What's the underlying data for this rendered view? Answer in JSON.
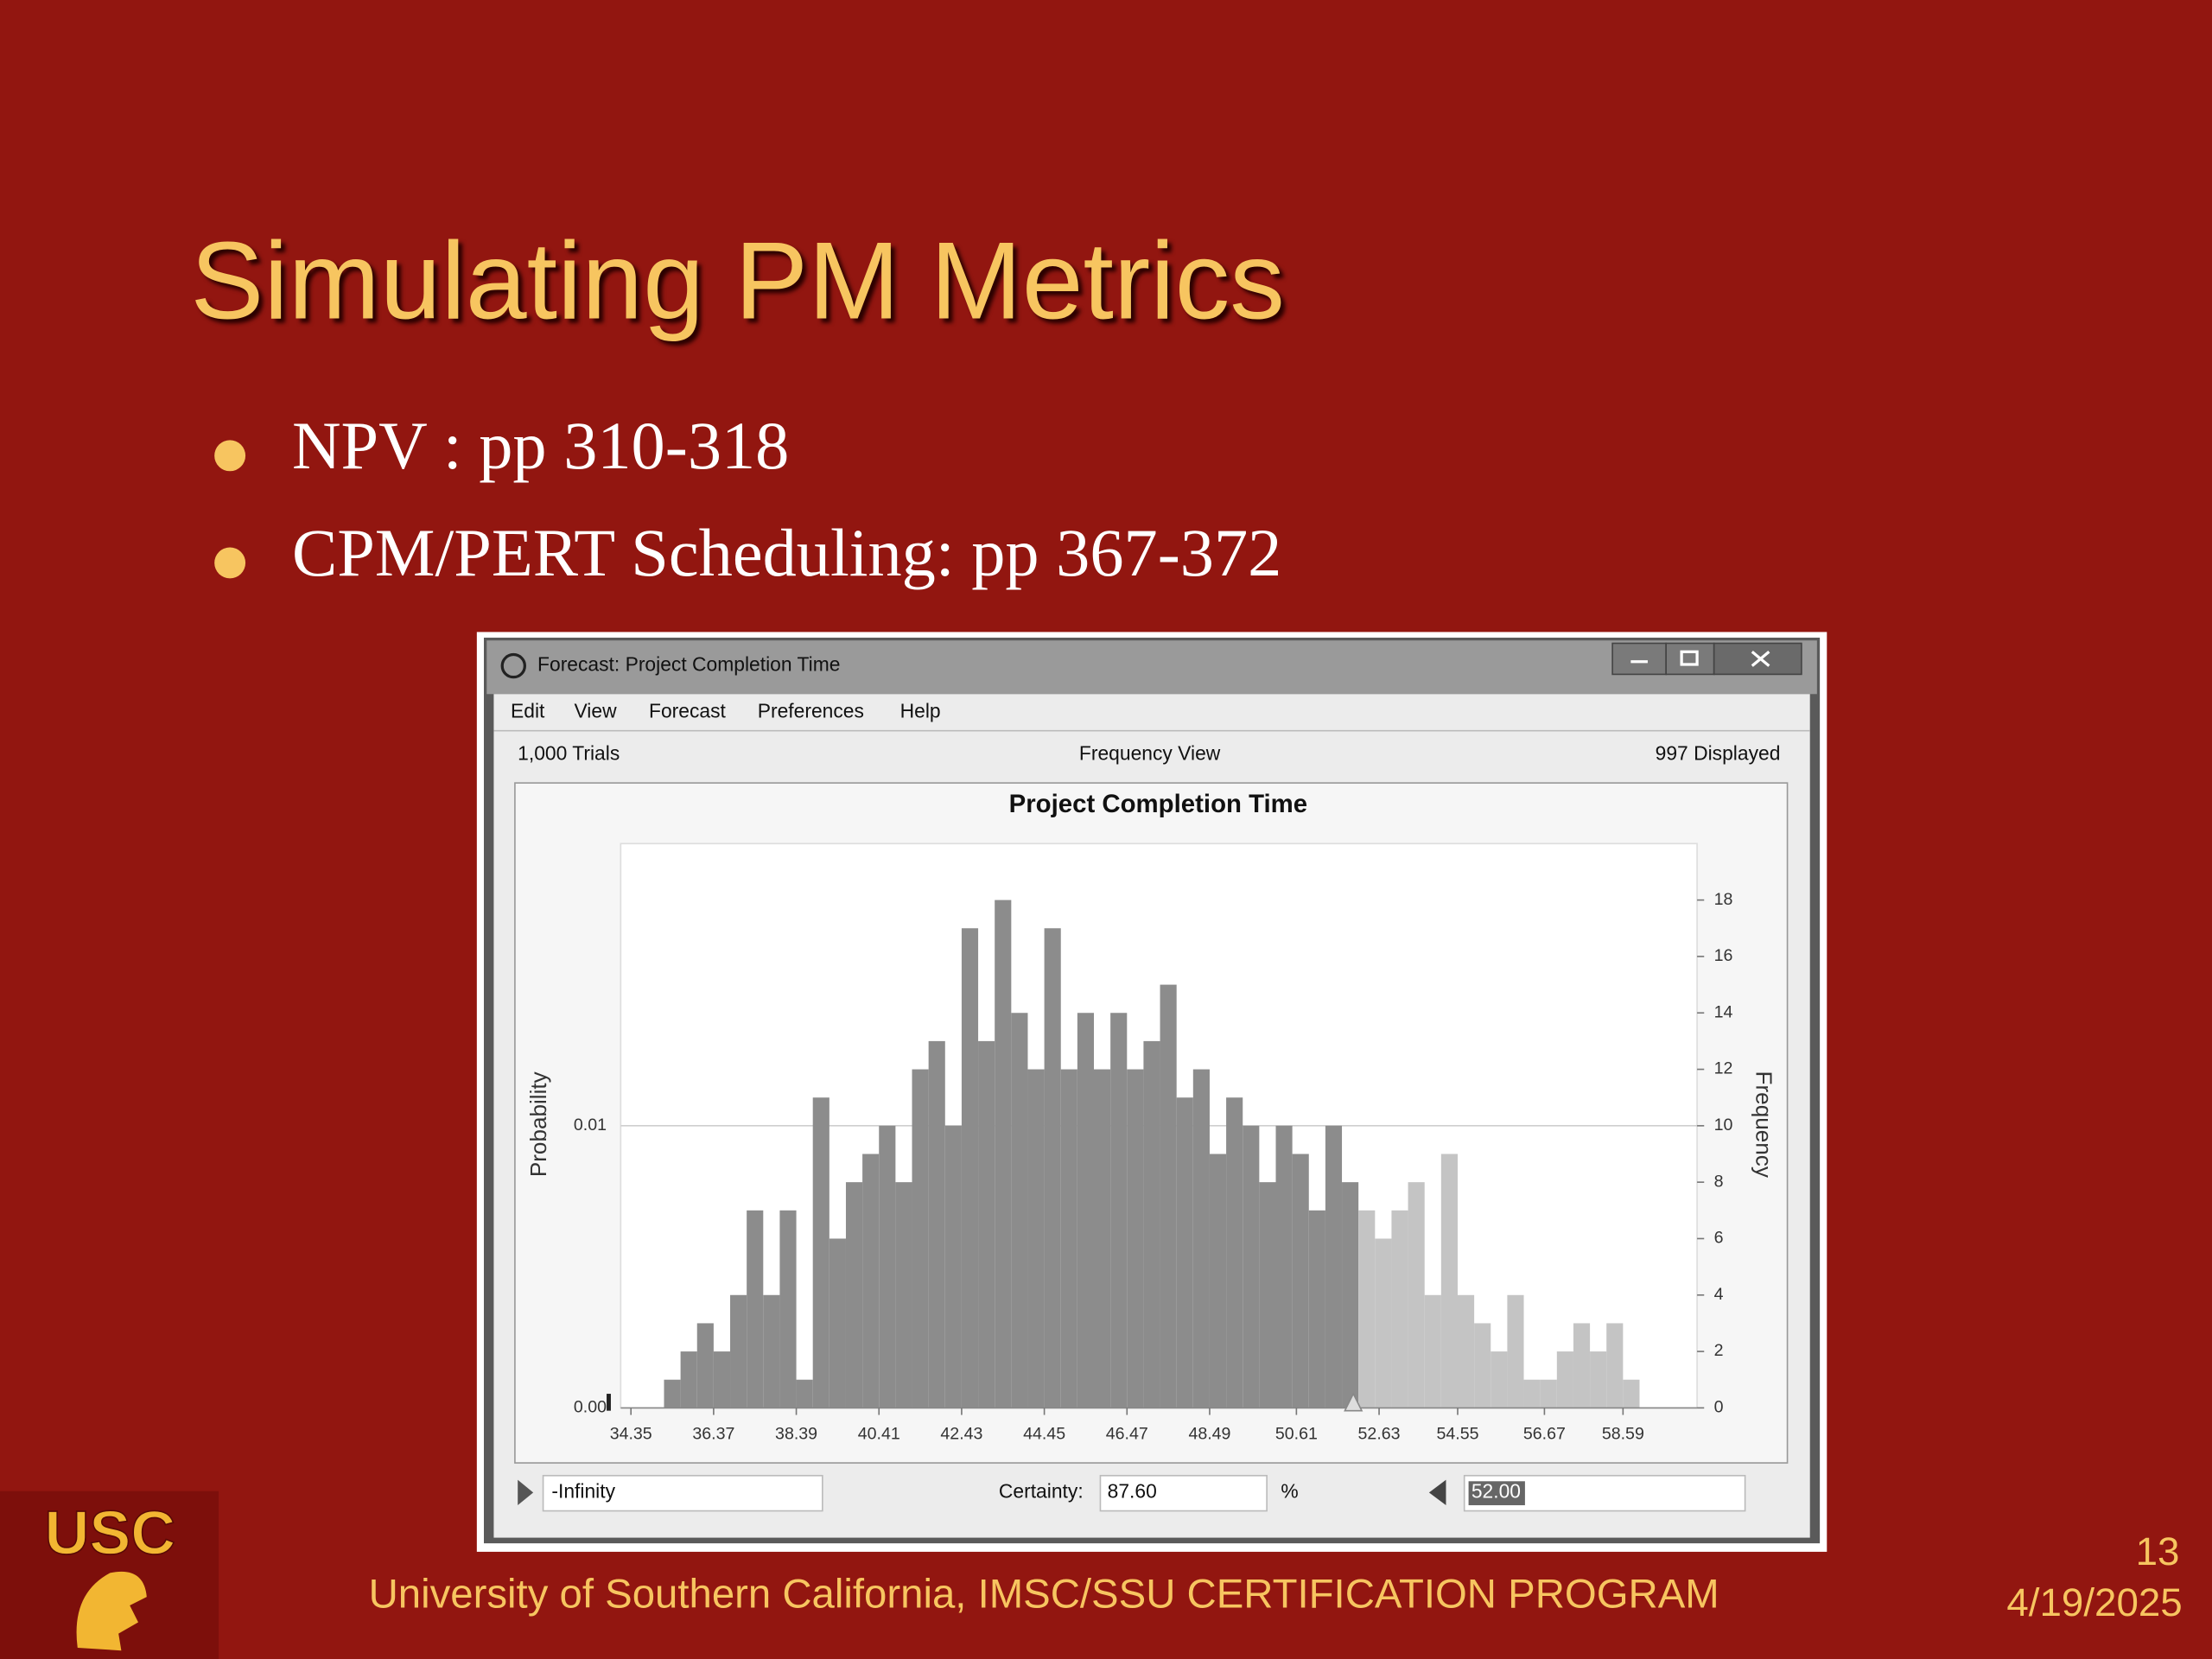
{
  "slide": {
    "title": "Simulating PM Metrics",
    "bullets": [
      "NPV : pp 310-318",
      "CPM/PERT Scheduling: pp 367-372"
    ],
    "logo": "USC",
    "footer": "University of Southern California, IMSC/SSU CERTIFICATION PROGRAM",
    "page_number": "13",
    "date": "4/19/2025"
  },
  "window": {
    "title": "Forecast: Project Completion Time",
    "menu": [
      "Edit",
      "View",
      "Forecast",
      "Preferences",
      "Help"
    ],
    "trials": "1,000 Trials",
    "view": "Frequency View",
    "displayed": "997 Displayed",
    "left_bound": "-Infinity",
    "certainty_label": "Certainty:",
    "certainty": "87.60",
    "certainty_unit": "%",
    "right_bound": "52.00"
  },
  "chart_data": {
    "type": "histogram",
    "title": "Project Completion Time",
    "ylabel": "Probability",
    "y2label": "Frequency",
    "bins": [
      34.35,
      34.754,
      35.158,
      35.562,
      35.966,
      36.37,
      36.774,
      37.178,
      37.582,
      37.986,
      38.39,
      38.794,
      39.198,
      39.602,
      40.006,
      40.41,
      40.814,
      41.218,
      41.622,
      42.026,
      42.43,
      42.834,
      43.238,
      43.642,
      44.046,
      44.45,
      44.854,
      45.258,
      45.662,
      46.066,
      46.47,
      46.874,
      47.278,
      47.682,
      48.086,
      48.49,
      48.894,
      49.298,
      49.702,
      50.106,
      50.51,
      50.914,
      51.318,
      51.722,
      52.126,
      52.53,
      52.934,
      53.338,
      53.742,
      54.146,
      54.55,
      54.954,
      55.358,
      55.762,
      56.166,
      56.57,
      56.974,
      57.378,
      57.782,
      58.186,
      58.59,
      58.994
    ],
    "values": [
      0,
      0,
      1,
      2,
      3,
      2,
      4,
      7,
      4,
      7,
      1,
      11,
      6,
      8,
      9,
      10,
      8,
      12,
      13,
      10,
      17,
      13,
      18,
      14,
      12,
      17,
      12,
      14,
      12,
      14,
      12,
      13,
      15,
      11,
      12,
      9,
      11,
      10,
      8,
      10,
      9,
      7,
      10,
      8,
      7,
      6,
      7,
      8,
      4,
      9,
      4,
      3,
      2,
      4,
      1,
      1,
      2,
      3,
      2,
      3,
      1
    ],
    "axis": "y2",
    "color": "#8c8c8c",
    "tail_color": "#c4c4c4",
    "xlim": [
      34.1,
      60.4
    ],
    "xticks": [
      34.35,
      36.37,
      38.39,
      40.41,
      42.43,
      44.45,
      46.47,
      48.49,
      50.61,
      52.63,
      54.55,
      56.67,
      58.59
    ],
    "ylim": [
      0,
      0.02
    ],
    "yticks": [
      {
        "value": 0,
        "label": "0.00"
      },
      0.01
    ],
    "y2lim": [
      0,
      20
    ],
    "y2ticks": [
      0,
      2,
      4,
      6,
      8,
      10,
      12,
      14,
      16,
      18
    ],
    "grid": true
  }
}
